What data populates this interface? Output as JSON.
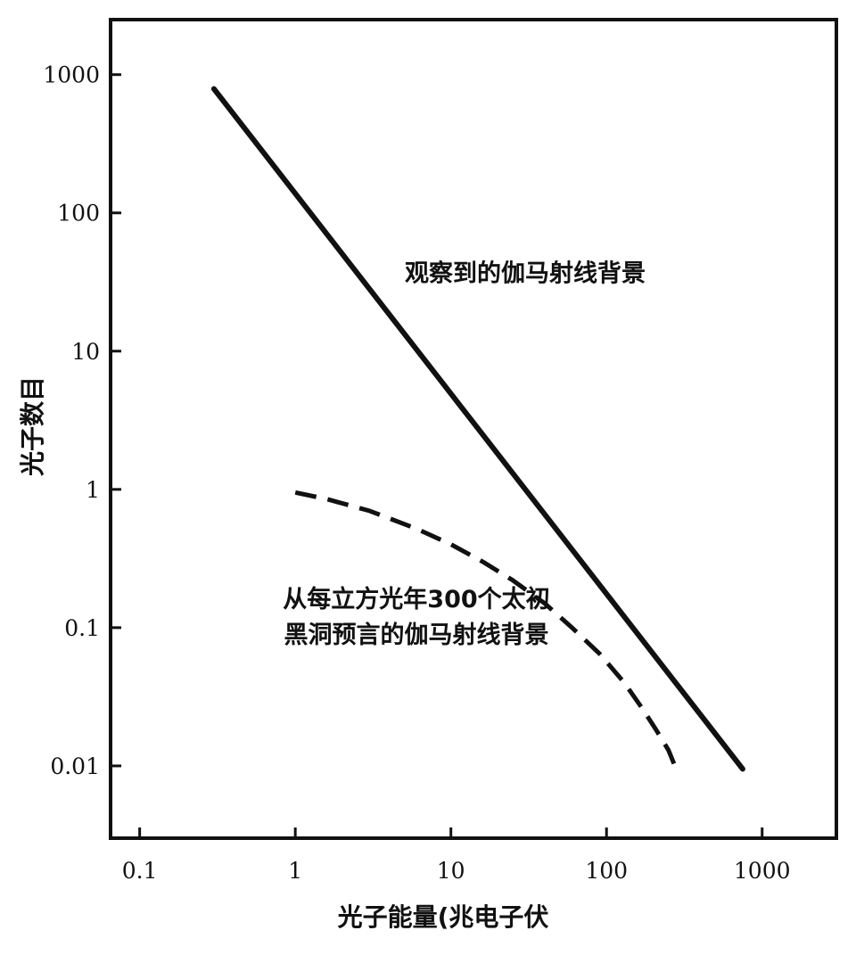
{
  "chart_data": {
    "type": "line",
    "title": "",
    "xlabel": "光子能量(兆电子伏",
    "ylabel": "光子数目",
    "xscale": "log",
    "yscale": "log",
    "xlim": [
      0.065,
      3000
    ],
    "ylim": [
      0.003,
      2500
    ],
    "grid": false,
    "x_ticks": [
      {
        "value": 0.1,
        "label": "0.1"
      },
      {
        "value": 1,
        "label": "1"
      },
      {
        "value": 10,
        "label": "10"
      },
      {
        "value": 100,
        "label": "100"
      },
      {
        "value": 1000,
        "label": "1000"
      }
    ],
    "y_ticks": [
      {
        "value": 0.01,
        "label": "0.01"
      },
      {
        "value": 0.1,
        "label": "0.1"
      },
      {
        "value": 1,
        "label": "1"
      },
      {
        "value": 10,
        "label": "10"
      },
      {
        "value": 100,
        "label": "100"
      },
      {
        "value": 1000,
        "label": "1000"
      }
    ],
    "series": [
      {
        "style": "solid",
        "color": "#111111",
        "points": [
          [
            0.3,
            790
          ],
          [
            750,
            0.0095
          ]
        ]
      },
      {
        "style": "dashed",
        "color": "#111111",
        "points": [
          [
            1,
            0.95
          ],
          [
            1.6,
            0.85
          ],
          [
            3,
            0.7
          ],
          [
            6,
            0.52
          ],
          [
            10,
            0.4
          ],
          [
            16,
            0.3
          ],
          [
            25,
            0.22
          ],
          [
            40,
            0.15
          ],
          [
            60,
            0.1
          ],
          [
            90,
            0.065
          ],
          [
            130,
            0.04
          ],
          [
            170,
            0.026
          ],
          [
            210,
            0.018
          ],
          [
            250,
            0.013
          ],
          [
            275,
            0.01
          ]
        ]
      }
    ],
    "annotations": [
      {
        "id": "observed",
        "lines": [
          "观察到的伽马射线背景"
        ],
        "x": 30,
        "y": 32
      },
      {
        "id": "predicted",
        "lines": [
          "从每立方光年300个太初",
          "黑洞预言的伽马射线背景"
        ],
        "x": 6,
        "y": 0.14
      }
    ]
  }
}
